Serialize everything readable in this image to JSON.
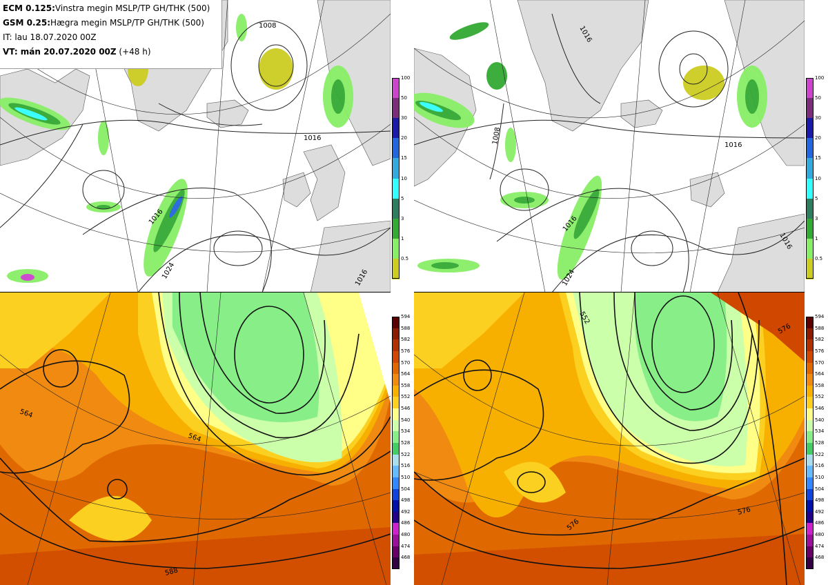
{
  "header": {
    "line1_bold": "ECM 0.125:",
    "line1_rest": "Vinstra megin MSLP/TP GH/THK (500)",
    "line2_bold": "GSM 0.25:",
    "line2_rest": "Hægra megin MSLP/TP GH/THK (500)",
    "line3": "IT: lau 18.07.2020 00Z",
    "line4_bold": "VT: mán 20.07.2020 00Z",
    "line4_rest": " (+48 h)"
  },
  "precip_colorbar": {
    "ticks": [
      "100",
      "50",
      "30",
      "20",
      "15",
      "10",
      "5",
      "3",
      "1",
      "0.5"
    ],
    "colors": [
      "#cc44cc",
      "#7a2e7a",
      "#1a1aa6",
      "#2266dd",
      "#33aadd",
      "#33ffff",
      "#2e7d5e",
      "#33aa33",
      "#88ee66",
      "#cccc22"
    ]
  },
  "thickness_colorbar": {
    "ticks": [
      "594",
      "588",
      "582",
      "576",
      "570",
      "564",
      "558",
      "552",
      "546",
      "540",
      "534",
      "528",
      "522",
      "516",
      "510",
      "504",
      "498",
      "492",
      "486",
      "480",
      "474",
      "468"
    ],
    "colors": [
      "#5a0000",
      "#8b1a00",
      "#b03000",
      "#d04800",
      "#e06800",
      "#f08a10",
      "#f8b000",
      "#fcd020",
      "#ffff88",
      "#ccffaa",
      "#88ee88",
      "#44cc66",
      "#aaddee",
      "#66bbff",
      "#3388ff",
      "#1144dd",
      "#0011aa",
      "#220088",
      "#cc22cc",
      "#991199",
      "#660066",
      "#330044"
    ]
  },
  "map_labels": {
    "tl": [
      "1008",
      "1016",
      "1016",
      "1024",
      "1016"
    ],
    "tr": [
      "1016",
      "1008",
      "1016",
      "1016",
      "1016",
      "1024"
    ],
    "bl": [
      "564",
      "564",
      "588"
    ],
    "br": [
      "552",
      "576",
      "576",
      "576"
    ]
  }
}
